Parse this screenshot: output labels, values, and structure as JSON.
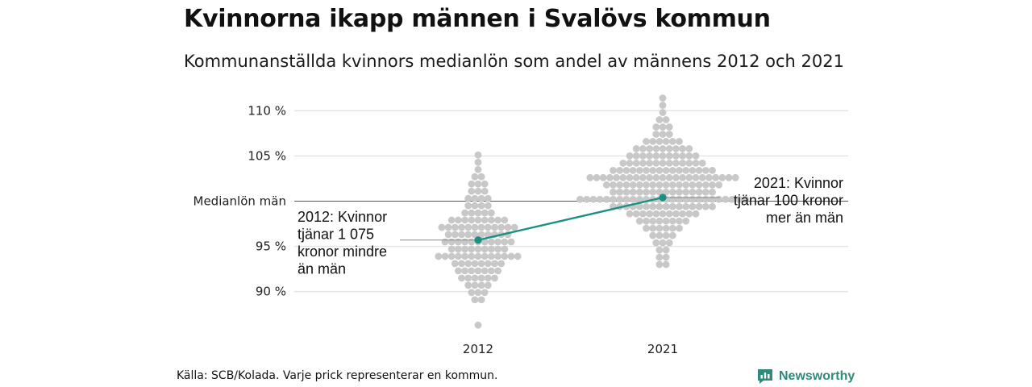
{
  "title": "Kvinnorna ikapp männen i Svalövs kommun",
  "subtitle": "Kommunanställda kvinnors medianlön som andel av männens 2012 och 2021",
  "footer": "Källa: SCB/Kolada. Varje prick representerar en kommun.",
  "logo": {
    "text": "Newsworthy",
    "icon": "newsworthy-chart-icon",
    "color": "#2e8b7a"
  },
  "colors": {
    "dots": "#c8c8c8",
    "highlight": "#1a9180",
    "grid": "#e3e3e3",
    "baseline": "#555555"
  },
  "chart_data": {
    "type": "scatter",
    "style": "beeswarm",
    "categories": [
      "2012",
      "2021"
    ],
    "y_ticks": [
      {
        "value": 90,
        "label": "90 %"
      },
      {
        "value": 95,
        "label": "95 %"
      },
      {
        "value": 100,
        "label": "Medianlön män"
      },
      {
        "value": 105,
        "label": "105 %"
      },
      {
        "value": 110,
        "label": "110 %"
      }
    ],
    "ylim": [
      85,
      111.5
    ],
    "reference_line": 100,
    "distribution_2012": [
      {
        "y": 105.1,
        "n": 1
      },
      {
        "y": 104.3,
        "n": 1
      },
      {
        "y": 103.5,
        "n": 1
      },
      {
        "y": 102.7,
        "n": 2
      },
      {
        "y": 101.9,
        "n": 3
      },
      {
        "y": 101.1,
        "n": 3
      },
      {
        "y": 100.3,
        "n": 4
      },
      {
        "y": 99.5,
        "n": 4
      },
      {
        "y": 98.7,
        "n": 5
      },
      {
        "y": 97.9,
        "n": 9
      },
      {
        "y": 97.1,
        "n": 12
      },
      {
        "y": 96.3,
        "n": 10
      },
      {
        "y": 95.5,
        "n": 11
      },
      {
        "y": 94.7,
        "n": 9
      },
      {
        "y": 93.9,
        "n": 13
      },
      {
        "y": 93.1,
        "n": 8
      },
      {
        "y": 92.3,
        "n": 7
      },
      {
        "y": 91.5,
        "n": 6
      },
      {
        "y": 90.7,
        "n": 4
      },
      {
        "y": 89.9,
        "n": 3
      },
      {
        "y": 89.1,
        "n": 2
      },
      {
        "y": 86.3,
        "n": 1
      }
    ],
    "distribution_2021": [
      {
        "y": 111.4,
        "n": 1
      },
      {
        "y": 110.6,
        "n": 1
      },
      {
        "y": 109.8,
        "n": 1
      },
      {
        "y": 109.0,
        "n": 2
      },
      {
        "y": 108.2,
        "n": 3
      },
      {
        "y": 107.4,
        "n": 3
      },
      {
        "y": 106.6,
        "n": 6
      },
      {
        "y": 105.8,
        "n": 9
      },
      {
        "y": 105.0,
        "n": 11
      },
      {
        "y": 104.2,
        "n": 13
      },
      {
        "y": 103.4,
        "n": 16
      },
      {
        "y": 102.6,
        "n": 23
      },
      {
        "y": 101.8,
        "n": 18
      },
      {
        "y": 101.0,
        "n": 16
      },
      {
        "y": 100.2,
        "n": 26
      },
      {
        "y": 99.4,
        "n": 16
      },
      {
        "y": 98.6,
        "n": 11
      },
      {
        "y": 97.8,
        "n": 8
      },
      {
        "y": 97.0,
        "n": 6
      },
      {
        "y": 96.2,
        "n": 4
      },
      {
        "y": 95.4,
        "n": 3
      },
      {
        "y": 94.6,
        "n": 2
      },
      {
        "y": 93.8,
        "n": 2
      },
      {
        "y": 93.0,
        "n": 2
      }
    ],
    "highlight": {
      "name": "Svalövs kommun",
      "points": [
        {
          "x": "2012",
          "y": 95.7
        },
        {
          "x": "2021",
          "y": 100.4
        }
      ]
    },
    "annotations": {
      "a2012": [
        "2012: Kvinnor",
        "tjänar 1 075",
        "kronor mindre",
        "än män"
      ],
      "a2021": [
        "2021: Kvinnor",
        "tjänar 100 kronor",
        "mer än män"
      ]
    }
  }
}
